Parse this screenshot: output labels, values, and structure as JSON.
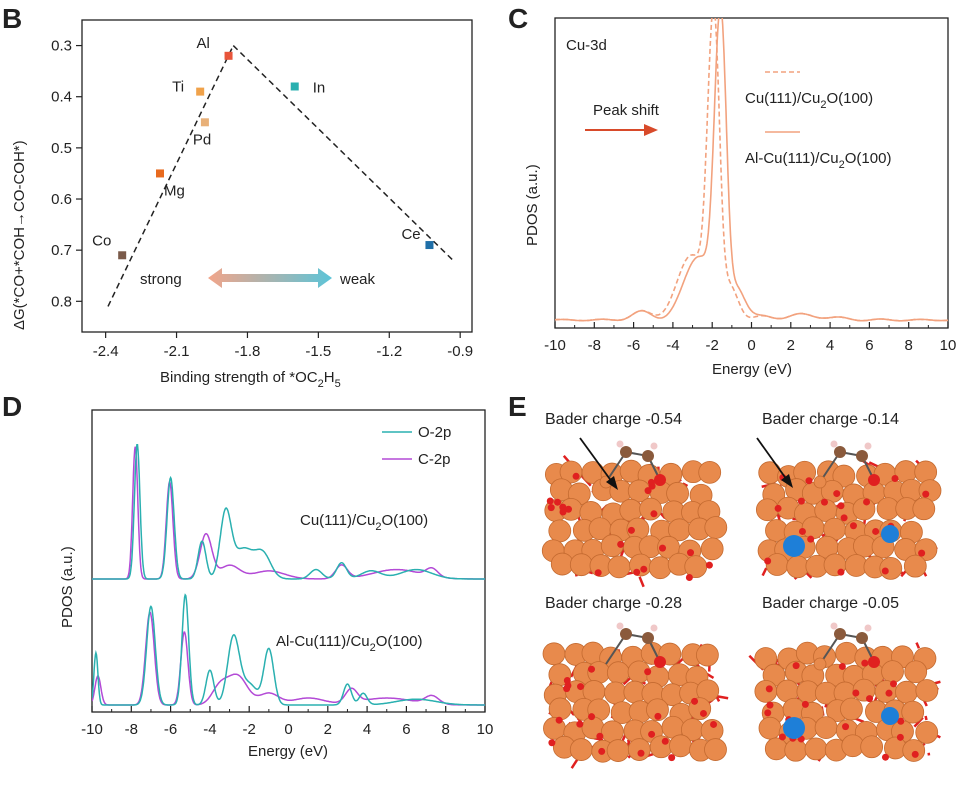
{
  "chart_data": [
    {
      "panel": "B",
      "type": "scatter",
      "xlabel": "Binding strength of *OC2H5",
      "ylabel": "ΔG(*CO+*COH→CO-COH*)",
      "xlim": [
        -2.5,
        -0.85
      ],
      "ylim": [
        0.86,
        0.25
      ],
      "xticks": [
        -2.4,
        -2.1,
        -1.8,
        -1.5,
        -1.2,
        -0.9
      ],
      "yticks": [
        0.3,
        0.4,
        0.5,
        0.6,
        0.7,
        0.8
      ],
      "points": [
        {
          "label": "Al",
          "x": -1.88,
          "y": 0.32,
          "color": "#e8553a"
        },
        {
          "label": "In",
          "x": -1.6,
          "y": 0.38,
          "color": "#2ab0b0"
        },
        {
          "label": "Ti",
          "x": -2.0,
          "y": 0.39,
          "color": "#f0a24a"
        },
        {
          "label": "Pd",
          "x": -1.98,
          "y": 0.45,
          "color": "#e8b078"
        },
        {
          "label": "Mg",
          "x": -2.17,
          "y": 0.55,
          "color": "#e86a1e"
        },
        {
          "label": "Co",
          "x": -2.33,
          "y": 0.71,
          "color": "#7a5a4a"
        },
        {
          "label": "Ce",
          "x": -1.03,
          "y": 0.69,
          "color": "#1f6fa8"
        }
      ],
      "volcano_lines": [
        {
          "from": [
            -2.39,
            0.81
          ],
          "to": [
            -1.86,
            0.3
          ]
        },
        {
          "from": [
            -1.86,
            0.3
          ],
          "to": [
            -0.93,
            0.72
          ]
        }
      ],
      "annotations": {
        "strong": "strong",
        "weak": "weak"
      }
    },
    {
      "panel": "C",
      "type": "line",
      "title": "Cu-3d",
      "xlabel": "Energy (eV)",
      "ylabel": "PDOS (a.u.)",
      "xlim": [
        -10,
        10
      ],
      "xticks": [
        -10,
        -8,
        -6,
        -4,
        -2,
        0,
        2,
        4,
        6,
        8,
        10
      ],
      "series": [
        {
          "name": "Cu(111)/Cu2O(100)",
          "style": "dashed",
          "color": "#f2a27e",
          "peak_center": -2.0
        },
        {
          "name": "Al-Cu(111)/Cu2O(100)",
          "style": "solid",
          "color": "#f2a27e",
          "peak_center": -1.65
        }
      ],
      "annotation": "Peak shift"
    },
    {
      "panel": "D",
      "type": "line",
      "xlabel": "Energy (eV)",
      "ylabel": "PDOS (a.u.)",
      "xlim": [
        -10,
        10
      ],
      "xticks": [
        -10,
        -8,
        -6,
        -4,
        -2,
        0,
        2,
        4,
        6,
        8,
        10
      ],
      "series": [
        {
          "name": "O-2p",
          "color": "#2ab0b0"
        },
        {
          "name": "C-2p",
          "color": "#b34ad6"
        }
      ],
      "systems": [
        "Cu(111)/Cu2O(100)",
        "Al-Cu(111)/Cu2O(100)"
      ]
    }
  ],
  "panel_e": {
    "captions": [
      "Bader charge -0.54",
      "Bader charge -0.14",
      "Bader charge -0.28",
      "Bader charge -0.05"
    ]
  },
  "colors": {
    "axis": "#222222",
    "cu": "#e88a4c",
    "o": "#e02020",
    "al": "#1e7fd8",
    "c": "#8a5a3c",
    "h": "#f0c8c8",
    "arrow_red": "#d84a2a",
    "grad_left": "#f2a58a",
    "grad_right": "#5cc4d8"
  }
}
